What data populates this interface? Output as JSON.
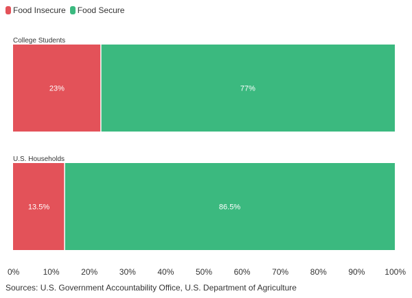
{
  "legend": [
    {
      "label": "Food Insecure",
      "color": "#e35259",
      "icon": "legend-swatch-icon"
    },
    {
      "label": "Food Secure",
      "color": "#3bb97f",
      "icon": "legend-swatch-icon"
    }
  ],
  "source": "Sources: U.S. Government Accountability Office, U.S. Department of Agriculture",
  "chart_data": {
    "type": "bar",
    "orientation": "horizontal",
    "stacked": true,
    "categories": [
      "College Students",
      "U.S. Households"
    ],
    "series": [
      {
        "name": "Food Insecure",
        "values": [
          23,
          13.5
        ],
        "labels": [
          "23%",
          "13.5%"
        ],
        "color": "#e35259"
      },
      {
        "name": "Food Secure",
        "values": [
          77,
          86.5
        ],
        "labels": [
          "77%",
          "86.5%"
        ],
        "color": "#3bb97f"
      }
    ],
    "xlim": [
      0,
      100
    ],
    "x_ticks": [
      0,
      10,
      20,
      30,
      40,
      50,
      60,
      70,
      80,
      90,
      100
    ],
    "x_tick_labels": [
      "0%",
      "10%",
      "20%",
      "30%",
      "40%",
      "50%",
      "60%",
      "70%",
      "80%",
      "90%",
      "100%"
    ],
    "xlabel": "",
    "ylabel": "",
    "grid": false,
    "legend_position": "top-left"
  }
}
